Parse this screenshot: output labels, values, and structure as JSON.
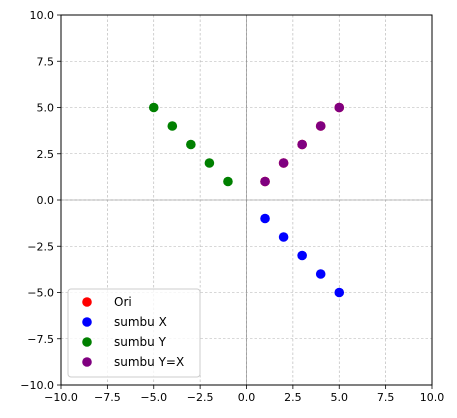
{
  "chart_data": {
    "type": "scatter",
    "title": "",
    "xlabel": "",
    "ylabel": "",
    "xlim": [
      -10,
      10
    ],
    "ylim": [
      -10,
      10
    ],
    "xticks": [
      -10.0,
      -7.5,
      -5.0,
      -2.5,
      0.0,
      2.5,
      5.0,
      7.5,
      10.0
    ],
    "yticks": [
      -10.0,
      -7.5,
      -5.0,
      -2.5,
      0.0,
      2.5,
      5.0,
      7.5,
      10.0
    ],
    "xtick_labels": [
      "−10.0",
      "−7.5",
      "−5.0",
      "−2.5",
      "0.0",
      "2.5",
      "5.0",
      "7.5",
      "10.0"
    ],
    "ytick_labels": [
      "−10.0",
      "−7.5",
      "−5.0",
      "−2.5",
      "0.0",
      "2.5",
      "5.0",
      "7.5",
      "10.0"
    ],
    "grid": true,
    "axes_lines_through_origin": true,
    "legend_position": "lower-left",
    "series": [
      {
        "name": "Ori",
        "color": "#ff0000",
        "x": [
          1,
          2,
          3,
          4,
          5
        ],
        "y": [
          1,
          2,
          3,
          4,
          5
        ]
      },
      {
        "name": "sumbu X",
        "color": "#0000ff",
        "x": [
          1,
          2,
          3,
          4,
          5
        ],
        "y": [
          -1,
          -2,
          -3,
          -4,
          -5
        ]
      },
      {
        "name": "sumbu Y",
        "color": "#008000",
        "x": [
          -1,
          -2,
          -3,
          -4,
          -5
        ],
        "y": [
          1,
          2,
          3,
          4,
          5
        ]
      },
      {
        "name": "sumbu Y=X",
        "color": "#800080",
        "x": [
          1,
          2,
          3,
          4,
          5
        ],
        "y": [
          1,
          2,
          3,
          4,
          5
        ]
      }
    ]
  }
}
